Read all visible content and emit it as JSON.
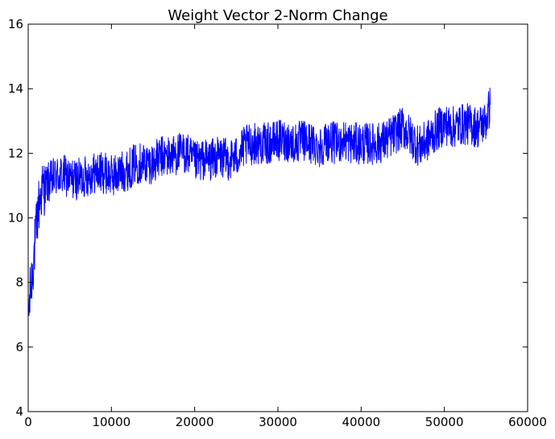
{
  "chart_data": {
    "type": "line",
    "title": "Weight Vector 2-Norm Change",
    "xlabel": "",
    "ylabel": "",
    "xlim": [
      0,
      60000
    ],
    "ylim": [
      4,
      16
    ],
    "xticks": [
      0,
      10000,
      20000,
      30000,
      40000,
      50000,
      60000
    ],
    "yticks": [
      4,
      6,
      8,
      10,
      12,
      14,
      16
    ],
    "grid": false,
    "line_color": "#0000ff",
    "series": [
      {
        "x": [
          0,
          300,
          600,
          900,
          1200,
          1600,
          2000,
          2500,
          3000,
          3500,
          4000,
          4500,
          5000,
          6000,
          7000,
          8000,
          9000,
          10000,
          11000,
          12000,
          13000,
          14000,
          15000,
          16000,
          17000,
          18000,
          19000,
          20000,
          21000,
          22000,
          23000,
          24000,
          25000,
          26000,
          27000,
          28000,
          29000,
          30000,
          31000,
          32000,
          33000,
          34000,
          35000,
          36000,
          37000,
          38000,
          39000,
          40000,
          41000,
          42000,
          43000,
          44000,
          45000,
          46000,
          47000,
          48000,
          49000,
          50000,
          51000,
          52000,
          53000,
          54000,
          55000,
          55500
        ],
        "y": [
          6.9,
          7.8,
          8.6,
          9.4,
          10.3,
          10.8,
          11.0,
          11.1,
          11.2,
          11.3,
          11.3,
          11.3,
          11.2,
          11.2,
          11.3,
          11.4,
          11.4,
          11.3,
          11.4,
          11.5,
          11.7,
          11.7,
          11.7,
          11.9,
          11.9,
          12.0,
          12.0,
          11.7,
          11.8,
          11.8,
          11.9,
          11.8,
          11.9,
          12.2,
          12.3,
          12.3,
          12.3,
          12.4,
          12.4,
          12.3,
          12.4,
          12.3,
          12.2,
          12.4,
          12.3,
          12.4,
          12.3,
          12.3,
          12.3,
          12.3,
          12.4,
          12.6,
          12.8,
          12.5,
          12.2,
          12.4,
          12.7,
          12.9,
          12.8,
          12.9,
          12.9,
          12.8,
          13.0,
          13.5
        ]
      }
    ]
  }
}
